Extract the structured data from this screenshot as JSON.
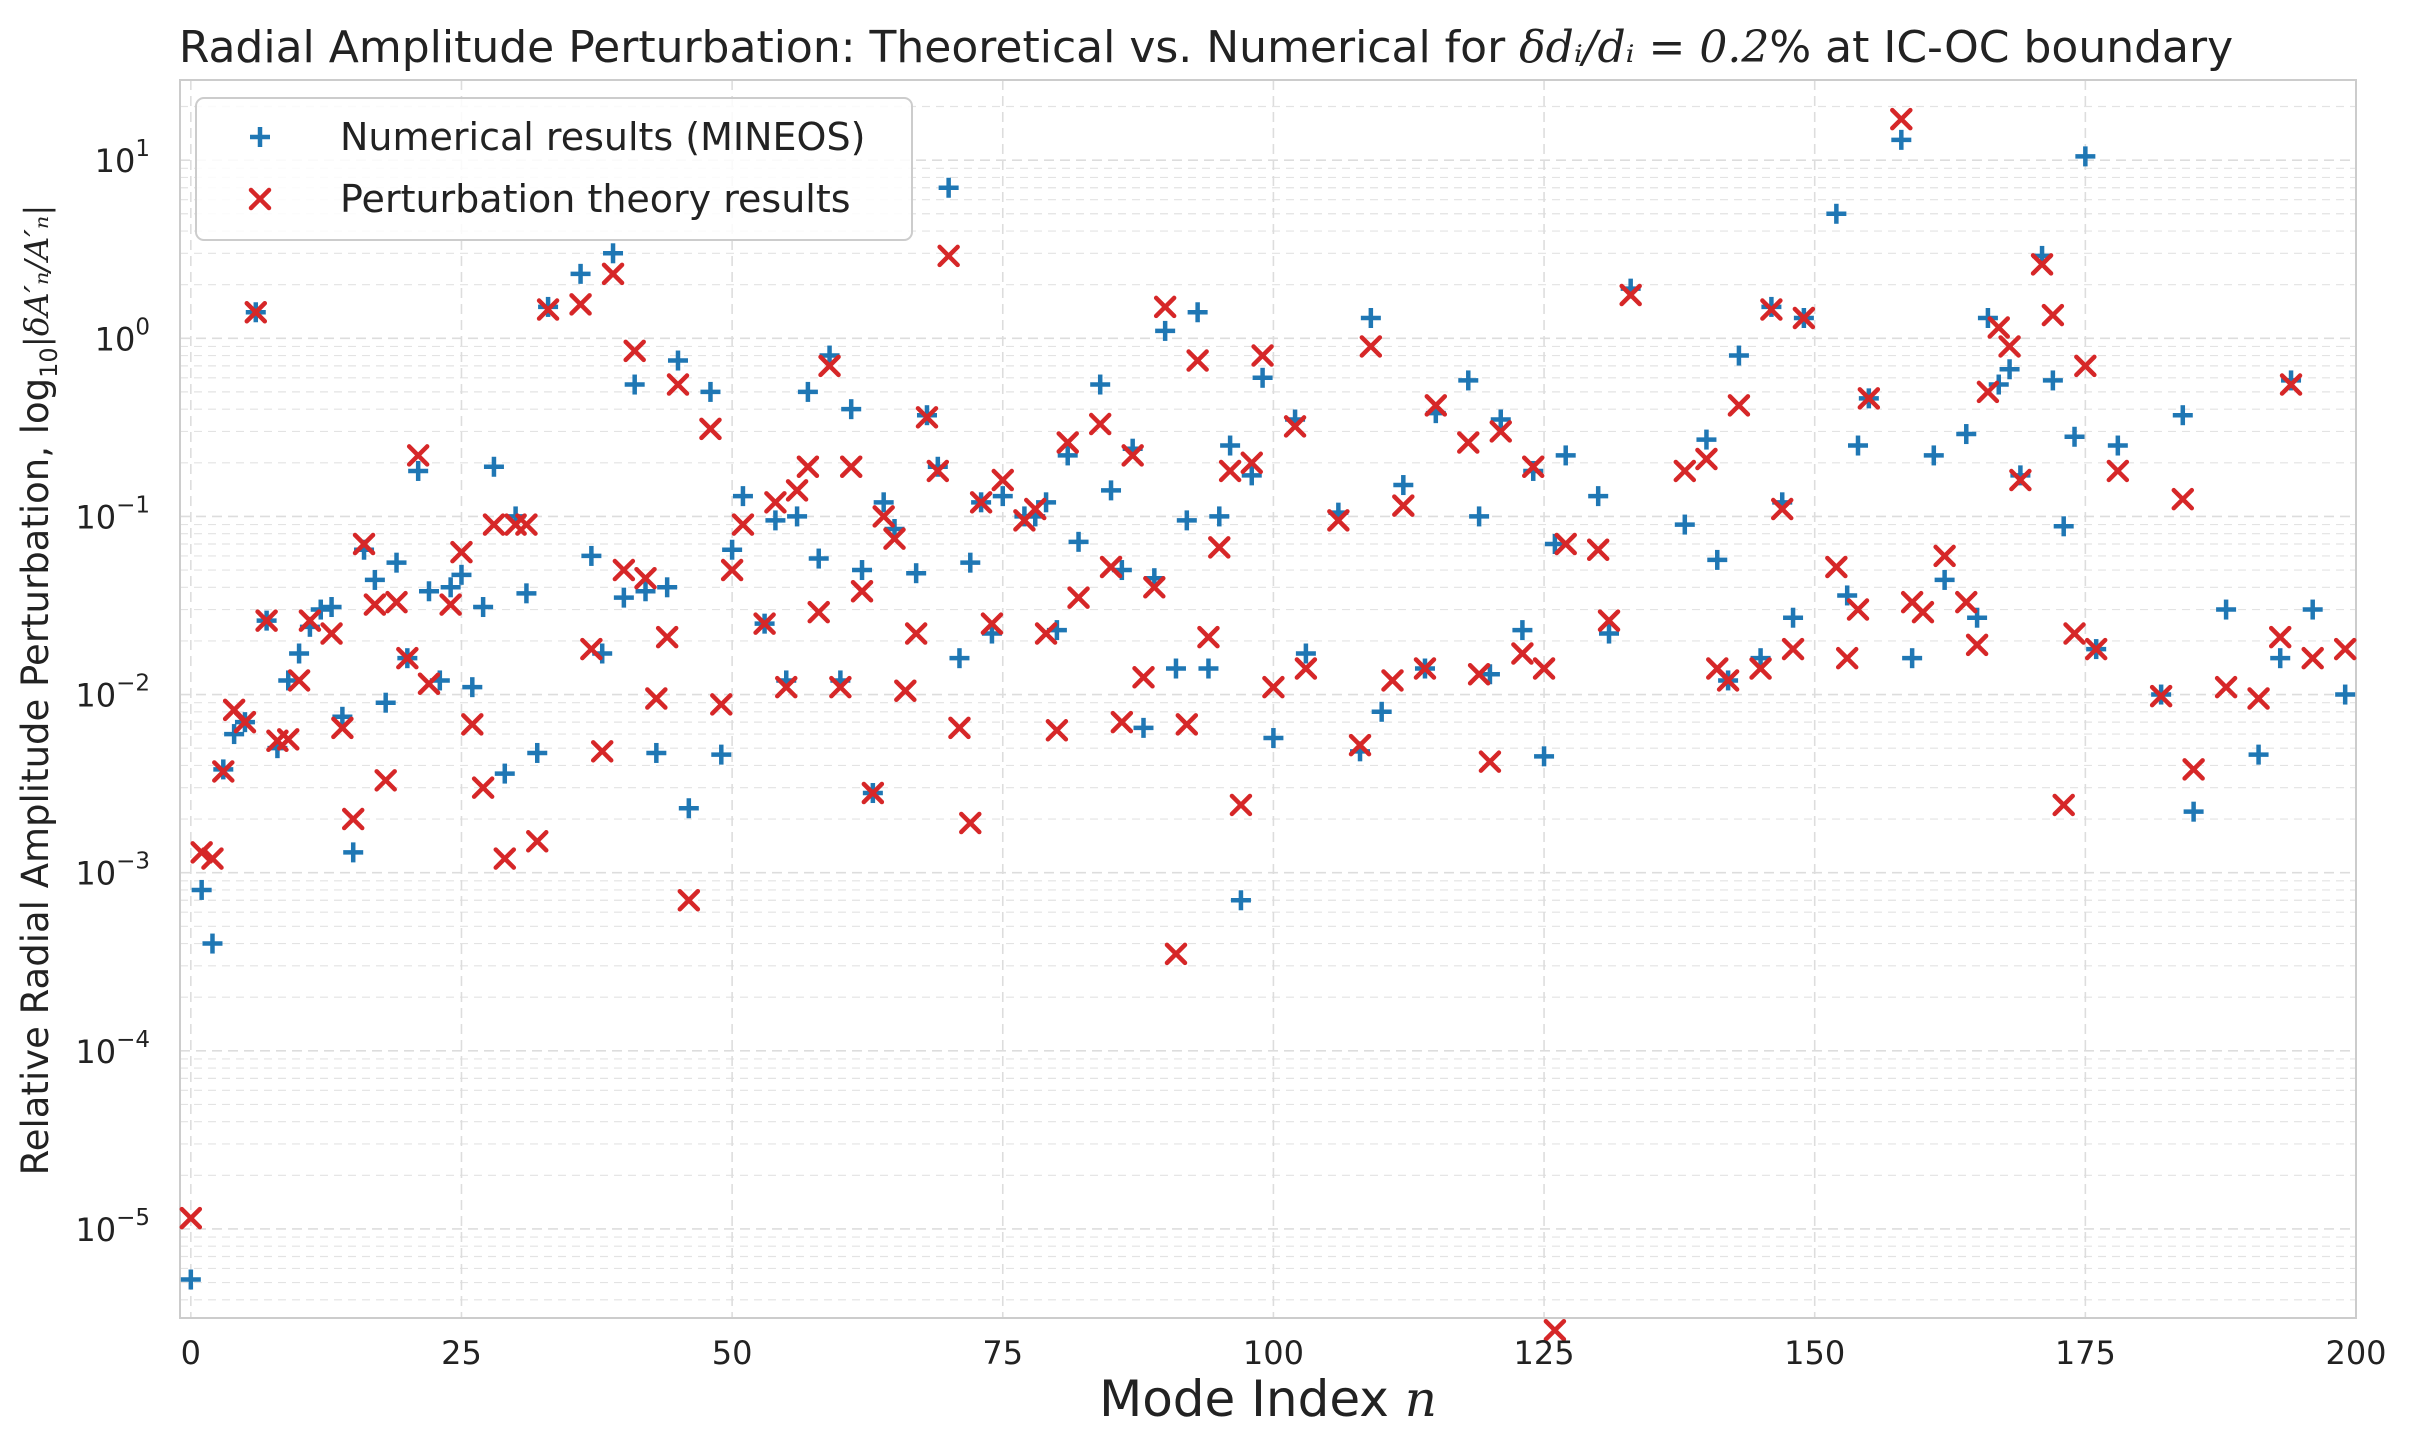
{
  "chart_data": {
    "type": "scatter",
    "title_parts": {
      "prefix": "Radial Amplitude Perturbation: Theoretical vs. Numerical for ",
      "math": "δdᵢ/dᵢ = 0.2",
      "suffix": "% at IC-OC boundary"
    },
    "xlabel_parts": {
      "text": "Mode Index ",
      "math": "n"
    },
    "ylabel_parts": {
      "text": "Relative Radial Amplitude Perturbation, log",
      "sub": "10",
      "math": "|δA′ₙ/A′ₙ|"
    },
    "x_range": [
      -1,
      200
    ],
    "y_range_log10": [
      -5.5,
      1.45
    ],
    "y_scale": "log",
    "x_ticks": [
      0,
      25,
      50,
      75,
      100,
      125,
      150,
      175,
      200
    ],
    "y_ticks": [
      {
        "base": "10",
        "exp": "−5",
        "value": -5
      },
      {
        "base": "10",
        "exp": "−4",
        "value": -4
      },
      {
        "base": "10",
        "exp": "−3",
        "value": -3
      },
      {
        "base": "10",
        "exp": "−2",
        "value": -2
      },
      {
        "base": "10",
        "exp": "−1",
        "value": -1
      },
      {
        "base": "10",
        "exp": "0",
        "value": 0
      },
      {
        "base": "10",
        "exp": "1",
        "value": 1
      }
    ],
    "grid": true,
    "legend_position": "top-left",
    "series": [
      {
        "name": "Numerical results (MINEOS)",
        "marker": "+",
        "color": "#1f77b4",
        "points": [
          [
            0,
            5.2e-06
          ],
          [
            1,
            0.0008
          ],
          [
            2,
            0.0004
          ],
          [
            3,
            0.0038
          ],
          [
            4,
            0.006
          ],
          [
            5,
            0.007
          ],
          [
            6,
            1.4
          ],
          [
            7,
            0.026
          ],
          [
            8,
            0.005
          ],
          [
            9,
            0.012
          ],
          [
            10,
            0.017
          ],
          [
            11,
            0.024
          ],
          [
            12,
            0.03
          ],
          [
            13,
            0.031
          ],
          [
            14,
            0.0075
          ],
          [
            15,
            0.0013
          ],
          [
            16,
            0.065
          ],
          [
            17,
            0.044
          ],
          [
            18,
            0.009
          ],
          [
            19,
            0.055
          ],
          [
            20,
            0.016
          ],
          [
            21,
            0.18
          ],
          [
            22,
            0.038
          ],
          [
            23,
            0.012
          ],
          [
            24,
            0.04
          ],
          [
            25,
            0.047
          ],
          [
            26,
            0.011
          ],
          [
            27,
            0.031
          ],
          [
            28,
            0.19
          ],
          [
            29,
            0.0036
          ],
          [
            30,
            0.1
          ],
          [
            31,
            0.037
          ],
          [
            32,
            0.0047
          ],
          [
            33,
            1.5
          ],
          [
            36,
            2.3
          ],
          [
            37,
            0.06
          ],
          [
            38,
            0.017
          ],
          [
            39,
            3.0
          ],
          [
            40,
            0.035
          ],
          [
            41,
            0.55
          ],
          [
            42,
            0.038
          ],
          [
            43,
            0.0047
          ],
          [
            44,
            0.04
          ],
          [
            45,
            0.75
          ],
          [
            46,
            0.0023
          ],
          [
            48,
            0.5
          ],
          [
            49,
            0.0046
          ],
          [
            50,
            0.065
          ],
          [
            51,
            0.13
          ],
          [
            53,
            0.025
          ],
          [
            54,
            0.095
          ],
          [
            55,
            0.012
          ],
          [
            56,
            0.1
          ],
          [
            57,
            0.5
          ],
          [
            58,
            0.058
          ],
          [
            59,
            0.8
          ],
          [
            60,
            0.012
          ],
          [
            61,
            0.4
          ],
          [
            62,
            0.05
          ],
          [
            63,
            0.0028
          ],
          [
            64,
            0.12
          ],
          [
            65,
            0.085
          ],
          [
            67,
            0.048
          ],
          [
            68,
            0.37
          ],
          [
            69,
            0.19
          ],
          [
            70,
            7.0
          ],
          [
            71,
            0.016
          ],
          [
            72,
            0.055
          ],
          [
            73,
            0.12
          ],
          [
            74,
            0.022
          ],
          [
            75,
            0.13
          ],
          [
            77,
            0.1
          ],
          [
            78,
            0.1
          ],
          [
            79,
            0.12
          ],
          [
            80,
            0.023
          ],
          [
            81,
            0.22
          ],
          [
            82,
            0.072
          ],
          [
            84,
            0.55
          ],
          [
            85,
            0.14
          ],
          [
            86,
            0.05
          ],
          [
            87,
            0.24
          ],
          [
            88,
            0.0065
          ],
          [
            89,
            0.045
          ],
          [
            90,
            1.1
          ],
          [
            91,
            0.014
          ],
          [
            92,
            0.095
          ],
          [
            93,
            1.4
          ],
          [
            94,
            0.014
          ],
          [
            95,
            0.1
          ],
          [
            96,
            0.25
          ],
          [
            97,
            0.0007
          ],
          [
            98,
            0.17
          ],
          [
            99,
            0.6
          ],
          [
            100,
            0.0057
          ],
          [
            102,
            0.35
          ],
          [
            103,
            0.017
          ],
          [
            106,
            0.105
          ],
          [
            108,
            0.0048
          ],
          [
            109,
            1.3
          ],
          [
            110,
            0.008
          ],
          [
            112,
            0.15
          ],
          [
            114,
            0.014
          ],
          [
            115,
            0.38
          ],
          [
            118,
            0.58
          ],
          [
            119,
            0.1
          ],
          [
            120,
            0.013
          ],
          [
            121,
            0.35
          ],
          [
            123,
            0.023
          ],
          [
            124,
            0.18
          ],
          [
            125,
            0.0045
          ],
          [
            126,
            0.07
          ],
          [
            127,
            0.22
          ],
          [
            130,
            0.13
          ],
          [
            131,
            0.022
          ],
          [
            133,
            1.9
          ],
          [
            138,
            0.09
          ],
          [
            140,
            0.27
          ],
          [
            141,
            0.057
          ],
          [
            142,
            0.012
          ],
          [
            143,
            0.8
          ],
          [
            145,
            0.016
          ],
          [
            146,
            1.5
          ],
          [
            147,
            0.12
          ],
          [
            148,
            0.027
          ],
          [
            149,
            1.3
          ],
          [
            152,
            5.0
          ],
          [
            153,
            0.036
          ],
          [
            154,
            0.25
          ],
          [
            155,
            0.46
          ],
          [
            158,
            13
          ],
          [
            159,
            0.016
          ],
          [
            161,
            0.22
          ],
          [
            162,
            0.044
          ],
          [
            164,
            0.29
          ],
          [
            165,
            0.027
          ],
          [
            166,
            1.3
          ],
          [
            167,
            0.55
          ],
          [
            168,
            0.67
          ],
          [
            169,
            0.17
          ],
          [
            171,
            2.9
          ],
          [
            172,
            0.58
          ],
          [
            173,
            0.088
          ],
          [
            174,
            0.28
          ],
          [
            175,
            10.5
          ],
          [
            176,
            0.018
          ],
          [
            178,
            0.25
          ],
          [
            182,
            0.01
          ],
          [
            184,
            0.37
          ],
          [
            185,
            0.0022
          ],
          [
            188,
            0.03
          ],
          [
            191,
            0.0046
          ],
          [
            193,
            0.016
          ],
          [
            194,
            0.58
          ],
          [
            196,
            0.03
          ],
          [
            199,
            0.01
          ]
        ]
      },
      {
        "name": "Perturbation theory results",
        "marker": "x",
        "color": "#d62728",
        "points": [
          [
            0,
            1.15e-05
          ],
          [
            1,
            0.0013
          ],
          [
            2,
            0.0012
          ],
          [
            3,
            0.0037
          ],
          [
            4,
            0.0082
          ],
          [
            5,
            0.007
          ],
          [
            6,
            1.4
          ],
          [
            7,
            0.026
          ],
          [
            8,
            0.0055
          ],
          [
            9,
            0.0056
          ],
          [
            10,
            0.012
          ],
          [
            11,
            0.026
          ],
          [
            13,
            0.022
          ],
          [
            14,
            0.0065
          ],
          [
            15,
            0.002
          ],
          [
            16,
            0.07
          ],
          [
            17,
            0.032
          ],
          [
            18,
            0.0033
          ],
          [
            19,
            0.033
          ],
          [
            20,
            0.016
          ],
          [
            21,
            0.22
          ],
          [
            22,
            0.0115
          ],
          [
            24,
            0.032
          ],
          [
            25,
            0.063
          ],
          [
            26,
            0.0068
          ],
          [
            27,
            0.003
          ],
          [
            28,
            0.09
          ],
          [
            29,
            0.0012
          ],
          [
            30,
            0.09
          ],
          [
            31,
            0.09
          ],
          [
            32,
            0.0015
          ],
          [
            33,
            1.45
          ],
          [
            36,
            1.55
          ],
          [
            37,
            0.018
          ],
          [
            38,
            0.0048
          ],
          [
            39,
            2.3
          ],
          [
            40,
            0.05
          ],
          [
            41,
            0.85
          ],
          [
            42,
            0.045
          ],
          [
            43,
            0.0095
          ],
          [
            44,
            0.021
          ],
          [
            45,
            0.55
          ],
          [
            46,
            0.0007
          ],
          [
            48,
            0.31
          ],
          [
            49,
            0.0088
          ],
          [
            50,
            0.05
          ],
          [
            51,
            0.09
          ],
          [
            53,
            0.025
          ],
          [
            54,
            0.12
          ],
          [
            55,
            0.011
          ],
          [
            56,
            0.14
          ],
          [
            57,
            0.19
          ],
          [
            58,
            0.029
          ],
          [
            59,
            0.7
          ],
          [
            60,
            0.011
          ],
          [
            61,
            0.19
          ],
          [
            62,
            0.038
          ],
          [
            63,
            0.0028
          ],
          [
            64,
            0.1
          ],
          [
            65,
            0.075
          ],
          [
            66,
            0.0105
          ],
          [
            67,
            0.022
          ],
          [
            68,
            0.36
          ],
          [
            69,
            0.18
          ],
          [
            70,
            2.9
          ],
          [
            71,
            0.0065
          ],
          [
            72,
            0.0019
          ],
          [
            73,
            0.12
          ],
          [
            74,
            0.025
          ],
          [
            75,
            0.16
          ],
          [
            77,
            0.095
          ],
          [
            78,
            0.11
          ],
          [
            79,
            0.022
          ],
          [
            80,
            0.0063
          ],
          [
            81,
            0.26
          ],
          [
            82,
            0.035
          ],
          [
            84,
            0.33
          ],
          [
            85,
            0.052
          ],
          [
            86,
            0.007
          ],
          [
            87,
            0.22
          ],
          [
            88,
            0.0125
          ],
          [
            89,
            0.04
          ],
          [
            90,
            1.5
          ],
          [
            91,
            0.00035
          ],
          [
            92,
            0.0068
          ],
          [
            93,
            0.75
          ],
          [
            94,
            0.021
          ],
          [
            95,
            0.067
          ],
          [
            96,
            0.18
          ],
          [
            97,
            0.0024
          ],
          [
            98,
            0.2
          ],
          [
            99,
            0.8
          ],
          [
            100,
            0.011
          ],
          [
            102,
            0.32
          ],
          [
            103,
            0.014
          ],
          [
            106,
            0.095
          ],
          [
            108,
            0.0052
          ],
          [
            109,
            0.9
          ],
          [
            111,
            0.012
          ],
          [
            112,
            0.115
          ],
          [
            114,
            0.014
          ],
          [
            115,
            0.42
          ],
          [
            118,
            0.26
          ],
          [
            119,
            0.013
          ],
          [
            120,
            0.0042
          ],
          [
            121,
            0.3
          ],
          [
            123,
            0.017
          ],
          [
            124,
            0.19
          ],
          [
            125,
            0.014
          ],
          [
            126,
            2.7e-06
          ],
          [
            127,
            0.07
          ],
          [
            130,
            0.065
          ],
          [
            131,
            0.026
          ],
          [
            133,
            1.75
          ],
          [
            138,
            0.18
          ],
          [
            140,
            0.21
          ],
          [
            141,
            0.014
          ],
          [
            142,
            0.012
          ],
          [
            143,
            0.42
          ],
          [
            145,
            0.014
          ],
          [
            146,
            1.45
          ],
          [
            147,
            0.11
          ],
          [
            148,
            0.018
          ],
          [
            149,
            1.3
          ],
          [
            152,
            0.052
          ],
          [
            153,
            0.016
          ],
          [
            154,
            0.03
          ],
          [
            155,
            0.46
          ],
          [
            158,
            17
          ],
          [
            159,
            0.033
          ],
          [
            160,
            0.029
          ],
          [
            162,
            0.06
          ],
          [
            164,
            0.033
          ],
          [
            165,
            0.019
          ],
          [
            166,
            0.5
          ],
          [
            167,
            1.15
          ],
          [
            168,
            0.9
          ],
          [
            169,
            0.16
          ],
          [
            171,
            2.6
          ],
          [
            172,
            1.35
          ],
          [
            173,
            0.0024
          ],
          [
            174,
            0.022
          ],
          [
            175,
            0.7
          ],
          [
            176,
            0.018
          ],
          [
            178,
            0.18
          ],
          [
            182,
            0.0098
          ],
          [
            184,
            0.125
          ],
          [
            185,
            0.0038
          ],
          [
            188,
            0.011
          ],
          [
            191,
            0.0095
          ],
          [
            193,
            0.021
          ],
          [
            194,
            0.55
          ],
          [
            196,
            0.016
          ],
          [
            199,
            0.018
          ]
        ]
      }
    ]
  }
}
